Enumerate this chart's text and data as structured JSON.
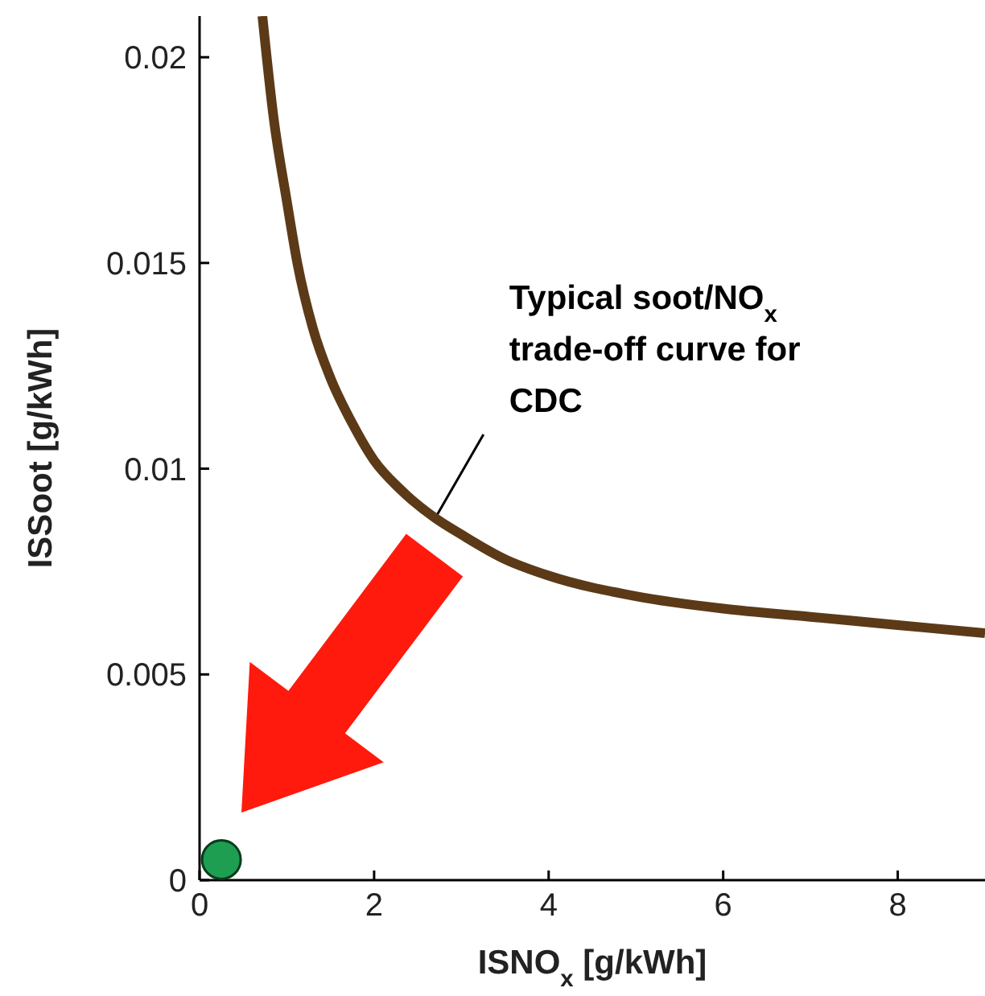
{
  "chart_data": {
    "type": "line",
    "xlabel": "ISNO$_{x}$ [g/kWh]",
    "ylabel": "ISSoot [g/kWh]",
    "xlim": [
      0,
      9
    ],
    "ylim": [
      0,
      0.021
    ],
    "xticks": [
      0,
      2,
      4,
      6,
      8
    ],
    "yticks": [
      0,
      0.005,
      0.01,
      0.015,
      0.02
    ],
    "series": [
      {
        "color": "#5c3a17",
        "marker": "none",
        "x": [
          0.72,
          0.85,
          1.0,
          1.12,
          1.3,
          1.5,
          1.75,
          2.0,
          2.3,
          2.7,
          3.0,
          3.5,
          4.0,
          5.0,
          6.0,
          7.0,
          8.0,
          9.0
        ],
        "values": [
          0.021,
          0.0185,
          0.0165,
          0.015,
          0.0134,
          0.0122,
          0.0111,
          0.0102,
          0.0095,
          0.0088,
          0.0084,
          0.0078,
          0.0074,
          0.0069,
          0.0066,
          0.0064,
          0.0062,
          0.006
        ]
      },
      {
        "type": "scatter",
        "color": "#1e9e50",
        "marker": "circle",
        "x": [
          0.25
        ],
        "values": [
          0.0005
        ]
      }
    ],
    "annotations": [
      {
        "text": "Typical soot/NO$_{x}$ trade-off curve for CDC",
        "x": 2.7,
        "y": 0.0088
      }
    ]
  }
}
